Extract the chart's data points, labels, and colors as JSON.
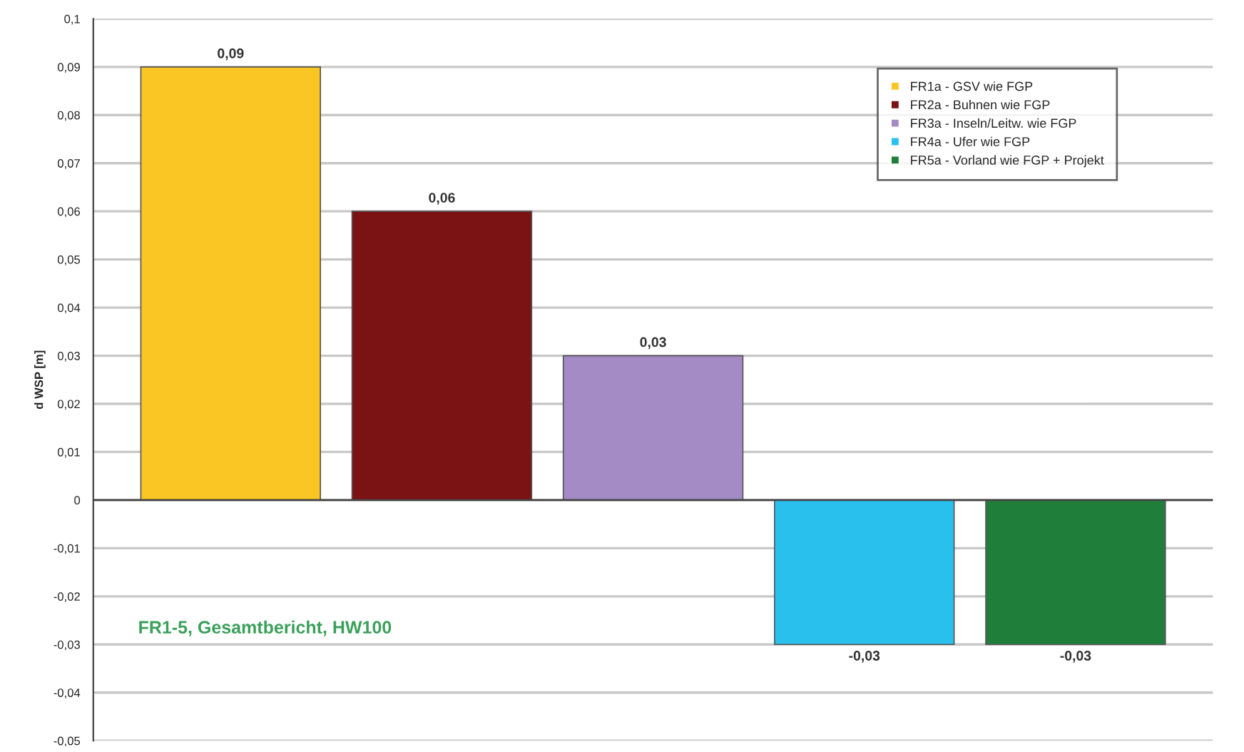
{
  "chart_data": {
    "type": "bar",
    "ylabel": "d WSP [m]",
    "categories": [
      null,
      null,
      null,
      null,
      null
    ],
    "series": [
      {
        "name": "FR1a - GSV wie FGP",
        "color": "#f9c623",
        "values": [
          0.09,
          null,
          null,
          null,
          null
        ],
        "value_labels": [
          "0,09",
          null,
          null,
          null,
          null
        ]
      },
      {
        "name": "FR2a - Buhnen wie FGP",
        "color": "#7b1214",
        "values": [
          null,
          0.06,
          null,
          null,
          null
        ],
        "value_labels": [
          null,
          "0,06",
          null,
          null,
          null
        ]
      },
      {
        "name": "FR3a - Inseln/Leitw. wie FGP",
        "color": "#a58bc6",
        "values": [
          null,
          null,
          0.03,
          null,
          null
        ],
        "value_labels": [
          null,
          null,
          "0,03",
          null,
          null
        ]
      },
      {
        "name": "FR4a - Ufer wie FGP",
        "color": "#29c0ee",
        "values": [
          null,
          null,
          null,
          -0.03,
          null
        ],
        "value_labels": [
          null,
          null,
          null,
          "-0,03",
          null
        ]
      },
      {
        "name": "FR5a - Vorland wie FGP + Projekt",
        "color": "#1f7f3a",
        "values": [
          null,
          null,
          null,
          null,
          -0.03
        ],
        "value_labels": [
          null,
          null,
          null,
          null,
          "-0,03"
        ]
      }
    ],
    "ylim": [
      -0.05,
      0.1
    ],
    "yticks": [
      {
        "value": 0.1,
        "label": "0,1"
      },
      {
        "value": 0.09,
        "label": "0,09"
      },
      {
        "value": 0.08,
        "label": "0,08"
      },
      {
        "value": 0.07,
        "label": "0,07"
      },
      {
        "value": 0.06,
        "label": "0,06"
      },
      {
        "value": 0.05,
        "label": "0,05"
      },
      {
        "value": 0.04,
        "label": "0,04"
      },
      {
        "value": 0.03,
        "label": "0,03"
      },
      {
        "value": 0.02,
        "label": "0,02"
      },
      {
        "value": 0.01,
        "label": "0,01"
      },
      {
        "value": 0,
        "label": "0"
      },
      {
        "value": -0.01,
        "label": "-0,01"
      },
      {
        "value": -0.02,
        "label": "-0,02"
      },
      {
        "value": -0.03,
        "label": "-0,03"
      },
      {
        "value": -0.04,
        "label": "-0,04"
      },
      {
        "value": -0.05,
        "label": "-0,05"
      }
    ],
    "grid": "y",
    "legend": "top right",
    "tick_labels": "y",
    "annotations": [
      "FR1-5, Gesamtbericht, HW100"
    ]
  }
}
